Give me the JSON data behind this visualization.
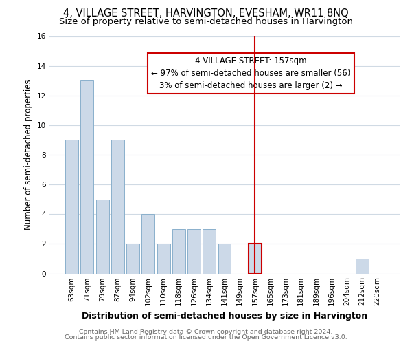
{
  "title": "4, VILLAGE STREET, HARVINGTON, EVESHAM, WR11 8NQ",
  "subtitle": "Size of property relative to semi-detached houses in Harvington",
  "xlabel": "Distribution of semi-detached houses by size in Harvington",
  "ylabel": "Number of semi-detached properties",
  "bar_labels": [
    "63sqm",
    "71sqm",
    "79sqm",
    "87sqm",
    "94sqm",
    "102sqm",
    "110sqm",
    "118sqm",
    "126sqm",
    "134sqm",
    "141sqm",
    "149sqm",
    "157sqm",
    "165sqm",
    "173sqm",
    "181sqm",
    "189sqm",
    "196sqm",
    "204sqm",
    "212sqm",
    "220sqm"
  ],
  "bar_values": [
    9,
    13,
    5,
    9,
    2,
    4,
    2,
    3,
    3,
    3,
    2,
    0,
    2,
    0,
    0,
    0,
    0,
    0,
    0,
    1,
    0
  ],
  "bar_color": "#ccd9e8",
  "bar_edge_color": "#8ab0cc",
  "highlight_index": 12,
  "highlight_line_color": "#cc0000",
  "annotation_text": "4 VILLAGE STREET: 157sqm\n← 97% of semi-detached houses are smaller (56)\n3% of semi-detached houses are larger (2) →",
  "annotation_box_edge": "#cc0000",
  "ylim": [
    0,
    16
  ],
  "yticks": [
    0,
    2,
    4,
    6,
    8,
    10,
    12,
    14,
    16
  ],
  "footer_line1": "Contains HM Land Registry data © Crown copyright and database right 2024.",
  "footer_line2": "Contains public sector information licensed under the Open Government Licence v3.0.",
  "bg_color": "#ffffff",
  "grid_color": "#d0dae4",
  "title_fontsize": 10.5,
  "subtitle_fontsize": 9.5,
  "ylabel_fontsize": 8.5,
  "xlabel_fontsize": 9,
  "tick_fontsize": 7.5,
  "footer_fontsize": 6.8,
  "annot_fontsize": 8.5
}
